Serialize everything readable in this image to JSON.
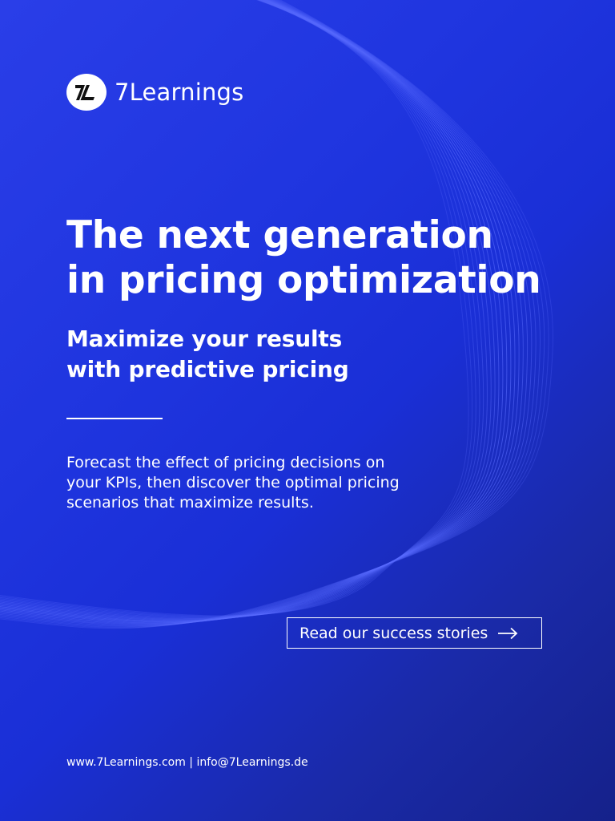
{
  "brand": {
    "name": "7Learnings",
    "logo_icon": "7l-monogram-icon"
  },
  "hero": {
    "headline_line1": "The next generation",
    "headline_line2": "in pricing optimization",
    "subhead_line1": "Maximize your results",
    "subhead_line2": "with predictive pricing",
    "body_line1": "Forecast the effect of pricing decisions on",
    "body_line2": "your KPIs, then discover the optimal pricing",
    "body_line3": "scenarios that maximize results."
  },
  "cta": {
    "label": "Read our success stories",
    "icon": "arrow-right-icon"
  },
  "footer": {
    "website": "www.7Learnings.com",
    "separator": " | ",
    "email": "info@7Learnings.de"
  },
  "colors": {
    "background_start": "#2a3ee8",
    "background_end": "#15218a",
    "text": "#ffffff",
    "wave_lines": "#5a6cff"
  }
}
